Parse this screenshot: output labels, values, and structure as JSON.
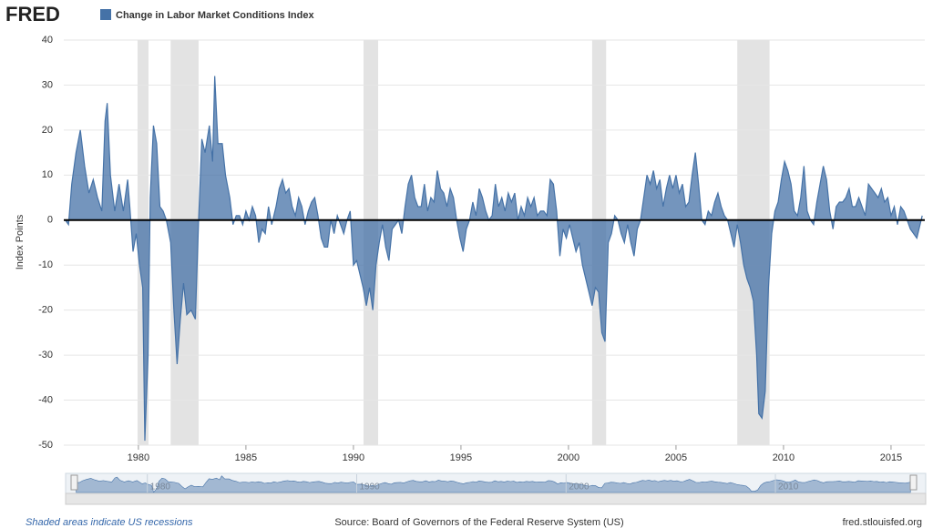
{
  "header": {
    "logo": "FRED"
  },
  "chart_data": {
    "type": "area",
    "title": "Change in Labor Market Conditions Index",
    "ylabel": "Index Points",
    "xlim": [
      1976.53,
      2016.57
    ],
    "xticks": [
      1980,
      1985,
      1990,
      1995,
      2000,
      2005,
      2010,
      2015
    ],
    "ylim": [
      -50,
      40
    ],
    "yticks": [
      -50,
      -40,
      -30,
      -20,
      -10,
      0,
      10,
      20,
      30,
      40
    ],
    "grid": true,
    "recession_color": "#e3e3e3",
    "recessions": [
      [
        1979.96,
        1980.47
      ],
      [
        1981.5,
        1982.8
      ],
      [
        1990.47,
        1991.15
      ],
      [
        2001.1,
        2001.75
      ],
      [
        2007.85,
        2009.35
      ]
    ],
    "x": [
      1976.6,
      1976.75,
      1976.9,
      1977.1,
      1977.3,
      1977.5,
      1977.7,
      1977.9,
      1978.1,
      1978.3,
      1978.45,
      1978.55,
      1978.7,
      1978.9,
      1979.1,
      1979.3,
      1979.5,
      1979.6,
      1979.75,
      1979.9,
      1980.05,
      1980.2,
      1980.3,
      1980.45,
      1980.55,
      1980.7,
      1980.85,
      1981.0,
      1981.15,
      1981.3,
      1981.5,
      1981.65,
      1981.8,
      1981.95,
      1982.1,
      1982.25,
      1982.45,
      1982.65,
      1982.8,
      1982.95,
      1983.1,
      1983.3,
      1983.45,
      1983.55,
      1983.7,
      1983.9,
      1984.05,
      1984.25,
      1984.4,
      1984.55,
      1984.7,
      1984.85,
      1985.0,
      1985.15,
      1985.3,
      1985.45,
      1985.6,
      1985.75,
      1985.9,
      1986.05,
      1986.2,
      1986.4,
      1986.55,
      1986.7,
      1986.85,
      1987.0,
      1987.15,
      1987.3,
      1987.45,
      1987.6,
      1987.75,
      1987.9,
      1988.05,
      1988.2,
      1988.35,
      1988.5,
      1988.65,
      1988.8,
      1988.95,
      1989.1,
      1989.25,
      1989.4,
      1989.55,
      1989.7,
      1989.85,
      1990.0,
      1990.15,
      1990.3,
      1990.45,
      1990.6,
      1990.75,
      1990.9,
      1991.05,
      1991.2,
      1991.35,
      1991.5,
      1991.65,
      1991.8,
      1991.95,
      1992.1,
      1992.25,
      1992.4,
      1992.55,
      1992.7,
      1992.85,
      1993.0,
      1993.15,
      1993.3,
      1993.45,
      1993.6,
      1993.75,
      1993.9,
      1994.05,
      1994.2,
      1994.35,
      1994.5,
      1994.65,
      1994.8,
      1994.95,
      1995.1,
      1995.25,
      1995.4,
      1995.55,
      1995.7,
      1995.85,
      1996.0,
      1996.15,
      1996.3,
      1996.45,
      1996.6,
      1996.75,
      1996.9,
      1997.05,
      1997.2,
      1997.35,
      1997.5,
      1997.65,
      1997.8,
      1997.95,
      1998.1,
      1998.25,
      1998.4,
      1998.55,
      1998.7,
      1998.85,
      1999.0,
      1999.15,
      1999.3,
      1999.45,
      1999.6,
      1999.75,
      1999.9,
      2000.05,
      2000.2,
      2000.35,
      2000.5,
      2000.65,
      2000.8,
      2000.95,
      2001.1,
      2001.25,
      2001.4,
      2001.55,
      2001.7,
      2001.85,
      2002.0,
      2002.15,
      2002.3,
      2002.45,
      2002.6,
      2002.75,
      2002.9,
      2003.05,
      2003.2,
      2003.35,
      2003.5,
      2003.65,
      2003.8,
      2003.95,
      2004.1,
      2004.25,
      2004.4,
      2004.55,
      2004.7,
      2004.85,
      2005.0,
      2005.15,
      2005.3,
      2005.45,
      2005.6,
      2005.75,
      2005.9,
      2006.05,
      2006.2,
      2006.35,
      2006.5,
      2006.65,
      2006.8,
      2006.95,
      2007.1,
      2007.25,
      2007.4,
      2007.55,
      2007.7,
      2007.85,
      2008.0,
      2008.15,
      2008.3,
      2008.45,
      2008.6,
      2008.75,
      2008.85,
      2009.0,
      2009.15,
      2009.3,
      2009.45,
      2009.6,
      2009.75,
      2009.9,
      2010.05,
      2010.2,
      2010.35,
      2010.5,
      2010.65,
      2010.8,
      2010.95,
      2011.1,
      2011.25,
      2011.4,
      2011.55,
      2011.7,
      2011.85,
      2012.0,
      2012.15,
      2012.3,
      2012.45,
      2012.6,
      2012.75,
      2012.9,
      2013.05,
      2013.2,
      2013.35,
      2013.5,
      2013.65,
      2013.8,
      2013.95,
      2014.1,
      2014.25,
      2014.4,
      2014.55,
      2014.7,
      2014.85,
      2015.0,
      2015.15,
      2015.3,
      2015.45,
      2015.6,
      2015.75,
      2015.9,
      2016.05,
      2016.2,
      2016.35,
      2016.45
    ],
    "series": [
      {
        "name": "Change in Labor Market Conditions Index",
        "color": "#4572a7",
        "values": [
          0,
          -1,
          8,
          15,
          20,
          12,
          6,
          9,
          5,
          2,
          22,
          26,
          10,
          2,
          8,
          2,
          9,
          3,
          -7,
          -3,
          -10,
          -15,
          -49,
          -30,
          5,
          21,
          17,
          3,
          2,
          0,
          -5,
          -20,
          -32,
          -22,
          -14,
          -21,
          -20,
          -22,
          0,
          18,
          15,
          21,
          13,
          32,
          17,
          17,
          10,
          5,
          -1,
          1,
          1,
          -1,
          2,
          0,
          3,
          1,
          -5,
          -2,
          -3,
          3,
          -1,
          3,
          7,
          9,
          6,
          7,
          3,
          1,
          5,
          3,
          -1,
          2,
          4,
          5,
          1,
          -4,
          -6,
          -6,
          0,
          -3,
          1,
          -1,
          -3,
          0,
          2,
          -10,
          -9,
          -12,
          -15,
          -19,
          -15,
          -20,
          -10,
          -5,
          -1,
          -6,
          -9,
          -2,
          -1,
          0,
          -3,
          3,
          8,
          10,
          5,
          3,
          3,
          8,
          2,
          5,
          4,
          11,
          7,
          6,
          3,
          7,
          5,
          0,
          -4,
          -7,
          -2,
          0,
          4,
          1,
          7,
          5,
          2,
          0,
          1,
          8,
          3,
          5,
          2,
          6,
          4,
          6,
          0,
          3,
          1,
          5,
          3,
          5,
          1,
          2,
          2,
          1,
          9,
          8,
          2,
          -8,
          -2,
          -4,
          -1,
          -4,
          -7,
          -5,
          -10,
          -13,
          -16,
          -19,
          -15,
          -16,
          -25,
          -27,
          -5,
          -3,
          1,
          0,
          -3,
          -5,
          -1,
          -5,
          -8,
          -2,
          0,
          5,
          10,
          8,
          11,
          7,
          9,
          3,
          7,
          10,
          7,
          10,
          6,
          8,
          3,
          4,
          10,
          15,
          8,
          0,
          -1,
          2,
          1,
          4,
          6,
          3,
          1,
          0,
          -3,
          -6,
          -1,
          -5,
          -10,
          -13,
          -15,
          -18,
          -30,
          -43,
          -44,
          -38,
          -15,
          -3,
          2,
          4,
          9,
          13,
          11,
          8,
          2,
          1,
          5,
          12,
          2,
          0,
          -1,
          4,
          8,
          12,
          9,
          2,
          -2,
          3,
          4,
          4,
          5,
          7,
          3,
          3,
          5,
          3,
          1,
          8,
          7,
          6,
          5,
          7,
          4,
          5,
          1,
          3,
          -1,
          3,
          2,
          0,
          -2,
          -3,
          -4,
          -1,
          1
        ]
      }
    ],
    "navigator_ticks": [
      1980,
      1990,
      2000,
      2010
    ]
  },
  "footer": {
    "note": "Shaded areas indicate US recessions",
    "source": "Source: Board of Governors of the Federal Reserve System (US)",
    "site": "fred.stlouisfed.org"
  }
}
